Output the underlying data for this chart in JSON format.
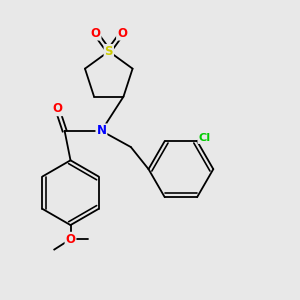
{
  "background_color": "#e8e8e8",
  "bond_color": "#000000",
  "atom_colors": {
    "N": "#0000ff",
    "O": "#ff0000",
    "S": "#cccc00",
    "Cl": "#00cc00",
    "C": "#000000"
  },
  "figsize": [
    3.0,
    3.0
  ],
  "dpi": 100,
  "bond_lw": 1.3,
  "font_size": 8.5
}
